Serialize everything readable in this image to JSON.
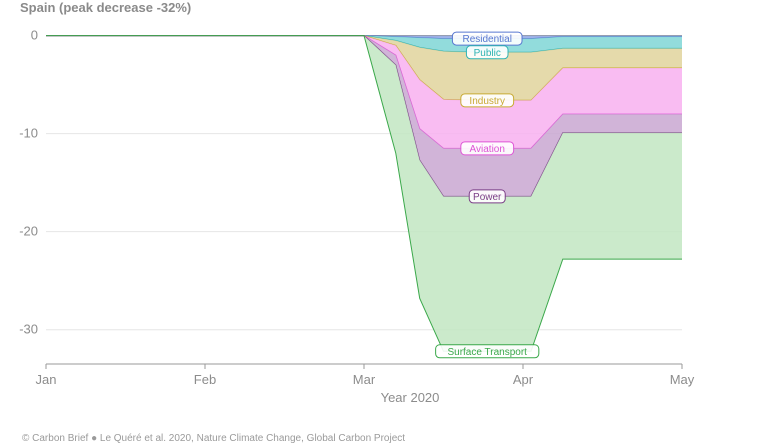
{
  "chart_data": {
    "type": "area",
    "title": "Spain (peak decrease -32%)",
    "xlabel": "Year 2020",
    "ylabel": "",
    "x_ticks": [
      "Jan",
      "Feb",
      "Mar",
      "Apr",
      "May"
    ],
    "y_ticks": [
      0,
      -10,
      -20,
      -30
    ],
    "xlim": [
      1,
      5
    ],
    "ylim": [
      -33.5,
      1.8
    ],
    "x": [
      1.0,
      3.0,
      3.2,
      3.35,
      3.5,
      3.7,
      3.9,
      4.05,
      4.25,
      5.0
    ],
    "series": [
      {
        "name": "Residential",
        "color": "#8fa6e6",
        "values": [
          0,
          0,
          -0.1,
          -0.2,
          -0.3,
          -0.3,
          -0.3,
          -0.3,
          -0.1,
          -0.1
        ]
      },
      {
        "name": "Public",
        "color": "#7fd6d6",
        "values": [
          0,
          0,
          -0.5,
          -1.2,
          -1.6,
          -1.7,
          -1.7,
          -1.7,
          -1.3,
          -1.3
        ]
      },
      {
        "name": "Industry",
        "color": "#e0d39c",
        "values": [
          0,
          0,
          -1.0,
          -4.5,
          -6.5,
          -6.6,
          -6.6,
          -6.6,
          -3.3,
          -3.3
        ]
      },
      {
        "name": "Aviation",
        "color": "#f8b0f0",
        "values": [
          0,
          0,
          -2.0,
          -9.5,
          -11.5,
          -11.5,
          -11.5,
          -11.5,
          -8.0,
          -8.0
        ]
      },
      {
        "name": "Power",
        "color": "#c9a7d1",
        "values": [
          0,
          0,
          -3.0,
          -12.7,
          -16.4,
          -16.4,
          -16.4,
          -16.4,
          -9.9,
          -9.9
        ]
      },
      {
        "name": "Surface Transport",
        "color": "#c2e6c2",
        "values": [
          0,
          0,
          -12.0,
          -26.8,
          -32.2,
          -32.2,
          -32.2,
          -32.2,
          -22.8,
          -22.8
        ]
      }
    ],
    "stroke_colors": {
      "Residential": "#5878d0",
      "Public": "#2eb3b3",
      "Industry": "#c8aa33",
      "Aviation": "#de55d6",
      "Power": "#7a3e86",
      "Surface Transport": "#3aa84a"
    },
    "grid": true,
    "legend": "inline labels"
  },
  "footer": {
    "note": "© Carbon Brief ● Le Quéré et al. 2020, Nature Climate Change, Global Carbon Project"
  }
}
